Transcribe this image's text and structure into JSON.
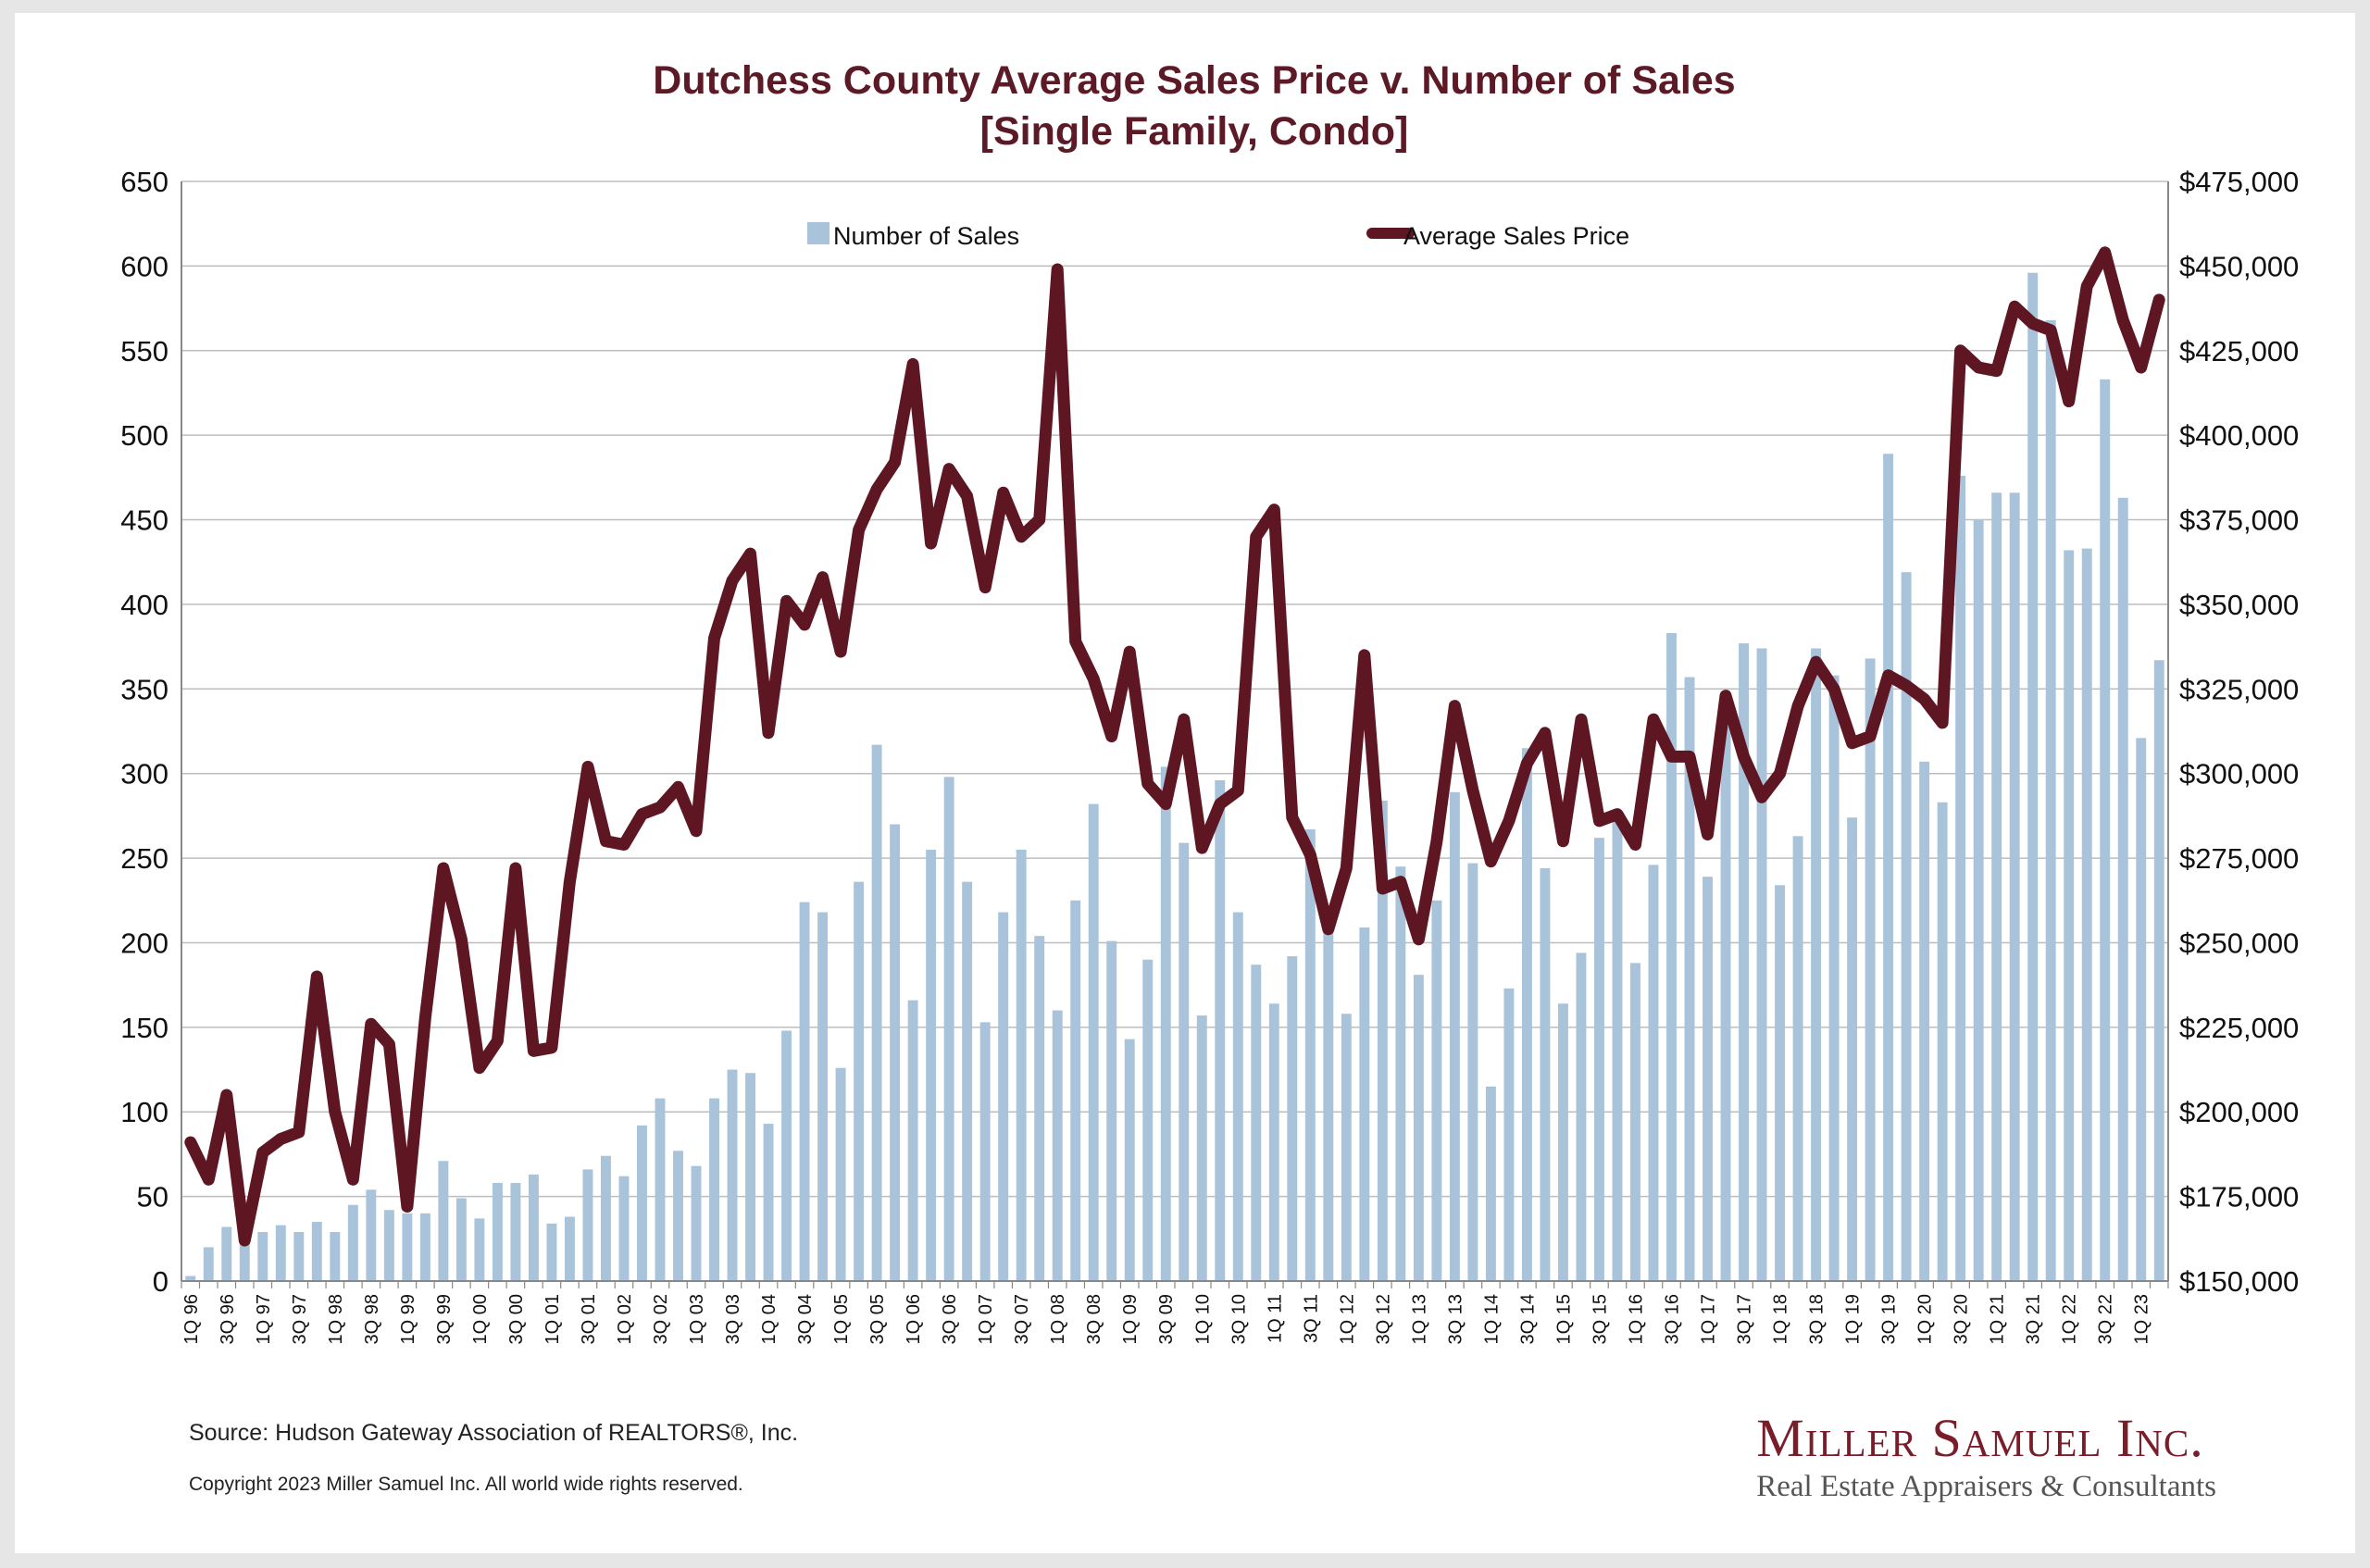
{
  "chart_data": {
    "type": "bar+line",
    "title": "Dutchess County Average Sales Price v. Number of Sales",
    "subtitle": "[Single Family, Condo]",
    "legend": {
      "placement": "top",
      "entries": [
        "Number of Sales",
        "Average Sales Price"
      ]
    },
    "y_left": {
      "min": 0,
      "max": 650,
      "step": 50,
      "ticks": [
        "0",
        "50",
        "100",
        "150",
        "200",
        "250",
        "300",
        "350",
        "400",
        "450",
        "500",
        "550",
        "600",
        "650"
      ]
    },
    "y_right": {
      "min": 150000,
      "max": 475000,
      "step": 25000,
      "ticks": [
        "$150,000",
        "$175,000",
        "$200,000",
        "$225,000",
        "$250,000",
        "$275,000",
        "$300,000",
        "$325,000",
        "$350,000",
        "$375,000",
        "$400,000",
        "$425,000",
        "$450,000",
        "$475,000"
      ]
    },
    "grid": true,
    "x_tick_labels": [
      "1Q 96",
      "3Q 96",
      "1Q 97",
      "3Q 97",
      "1Q 98",
      "3Q 98",
      "1Q 99",
      "3Q 99",
      "1Q 00",
      "3Q 00",
      "1Q 01",
      "3Q 01",
      "1Q 02",
      "3Q 02",
      "1Q 03",
      "3Q 03",
      "1Q 04",
      "3Q 04",
      "1Q 05",
      "3Q 05",
      "1Q 06",
      "3Q 06",
      "1Q 07",
      "3Q 07",
      "1Q 08",
      "3Q 08",
      "1Q 09",
      "3Q 09",
      "1Q 10",
      "3Q 10",
      "1Q 11",
      "3Q 11",
      "1Q 12",
      "3Q 12",
      "1Q 13",
      "3Q 13",
      "1Q 14",
      "3Q 14",
      "1Q 15",
      "3Q 15",
      "1Q 16",
      "3Q 16",
      "1Q 17",
      "3Q 17",
      "1Q 18",
      "3Q 18",
      "1Q 19",
      "3Q 19",
      "1Q 20",
      "3Q 20",
      "1Q 21",
      "3Q 21",
      "1Q 22",
      "3Q 22",
      "1Q 23"
    ],
    "series": [
      {
        "name": "Number of Sales",
        "type": "bar",
        "axis": "left",
        "color": "#a9c4da",
        "values": [
          3,
          20,
          32,
          23,
          29,
          33,
          29,
          35,
          29,
          45,
          54,
          42,
          40,
          40,
          71,
          49,
          37,
          58,
          58,
          63,
          34,
          38,
          66,
          74,
          62,
          92,
          108,
          77,
          68,
          108,
          125,
          123,
          93,
          148,
          224,
          218,
          126,
          236,
          317,
          270,
          166,
          255,
          298,
          236,
          153,
          218,
          255,
          204,
          160,
          225,
          282,
          201,
          143,
          190,
          304,
          259,
          157,
          296,
          218,
          187,
          164,
          192,
          267,
          210,
          158,
          209,
          284,
          245,
          181,
          225,
          289,
          247,
          115,
          173,
          315,
          244,
          164,
          194,
          262,
          278,
          188,
          246,
          383,
          357,
          239,
          328,
          377,
          374,
          234,
          263,
          374,
          358,
          274,
          368,
          489,
          419,
          307,
          283,
          476,
          450,
          466,
          466,
          596,
          568,
          432,
          433,
          533,
          463,
          321,
          367
        ]
      },
      {
        "name": "Average Sales Price",
        "type": "line",
        "axis": "right",
        "color": "#5e1622",
        "values": [
          191000,
          180000,
          205000,
          162000,
          188000,
          192000,
          194000,
          240000,
          200000,
          180000,
          226000,
          220000,
          172000,
          228000,
          272000,
          251000,
          213000,
          221000,
          272000,
          218000,
          219000,
          268000,
          302000,
          280000,
          279000,
          288000,
          290000,
          296000,
          283000,
          340000,
          357000,
          365000,
          312000,
          351000,
          344000,
          358000,
          336000,
          372000,
          384000,
          392000,
          421000,
          368000,
          390000,
          382000,
          355000,
          383000,
          370000,
          375000,
          449000,
          339000,
          328000,
          311000,
          336000,
          297000,
          291000,
          316000,
          278000,
          291000,
          295000,
          370000,
          378000,
          287000,
          276000,
          254000,
          272000,
          335000,
          266000,
          268000,
          251000,
          280000,
          320000,
          295000,
          274000,
          286000,
          303000,
          312000,
          280000,
          316000,
          286000,
          288000,
          279000,
          316000,
          305000,
          305000,
          282000,
          323000,
          305000,
          293000,
          300000,
          320000,
          333000,
          325000,
          309000,
          311000,
          329000,
          326000,
          322000,
          315000,
          425000,
          420000,
          419000,
          438000,
          433000,
          431000,
          410000,
          444000,
          454000,
          434000,
          420000,
          440000
        ]
      }
    ]
  },
  "footer": {
    "source": "Source: Hudson Gateway Association of REALTORS®, Inc.",
    "copyright": "Copyright 2023 Miller Samuel Inc.  All world wide rights reserved."
  },
  "brand": {
    "name": "Miller Samuel Inc.",
    "tagline": "Real Estate Appraisers & Consultants"
  }
}
